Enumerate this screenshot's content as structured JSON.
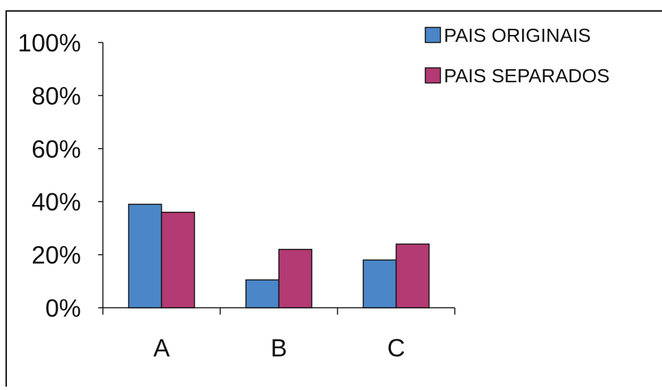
{
  "chart_data": {
    "type": "bar",
    "title": "",
    "xlabel": "",
    "ylabel": "",
    "categories": [
      "A",
      "B",
      "C"
    ],
    "series": [
      {
        "name": "PAIS ORIGINAIS",
        "color": "#4a86c8",
        "values": [
          39,
          10.5,
          18
        ]
      },
      {
        "name": "PAIS SEPARADOS",
        "color": "#b33a72",
        "values": [
          36,
          22,
          24
        ]
      }
    ],
    "ylim": [
      0,
      100
    ],
    "yticks": [
      0,
      20,
      40,
      60,
      80,
      100
    ],
    "ytick_labels": [
      "0%",
      "20%",
      "40%",
      "60%",
      "80%",
      "100%"
    ],
    "legend_position": "top-right",
    "grid": false
  }
}
